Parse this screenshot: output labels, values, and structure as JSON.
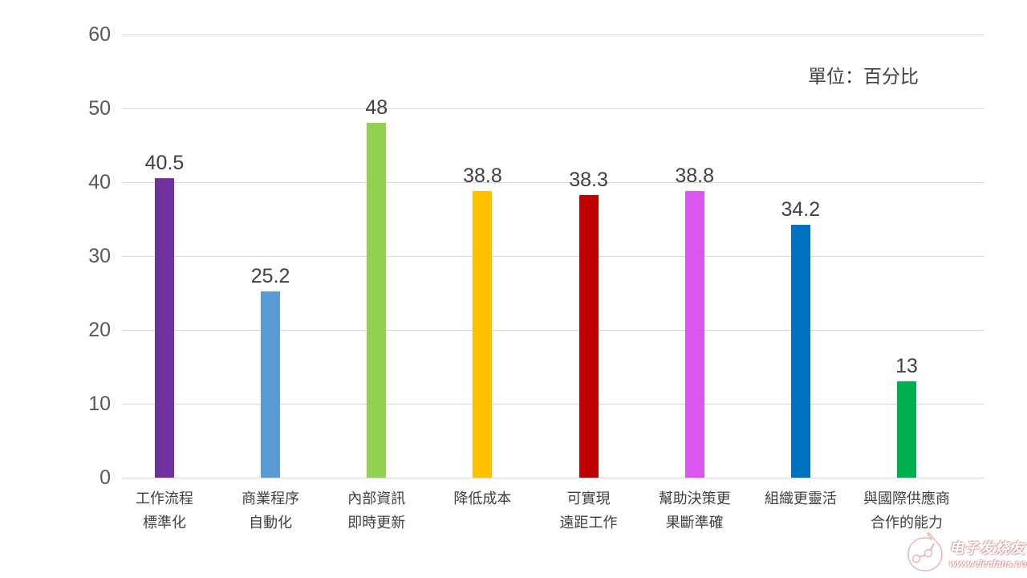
{
  "chart_data": {
    "type": "bar",
    "title": "",
    "unit_label": "單位：百分比",
    "xlabel": "",
    "ylabel": "",
    "ylim": [
      0,
      60
    ],
    "y_ticks": [
      0,
      10,
      20,
      30,
      40,
      50,
      60
    ],
    "grid": true,
    "legend_position": "none",
    "categories": [
      "工作流程標準化",
      "商業程序自動化",
      "內部資訊即時更新",
      "降低成本",
      "可實現遠距工作",
      "幫助決策更果斷準確",
      "組織更靈活",
      "與國際供應商合作的能力"
    ],
    "category_lines": [
      [
        "工作流程",
        "標準化"
      ],
      [
        "商業程序",
        "自動化"
      ],
      [
        "內部資訊",
        "即時更新"
      ],
      [
        "降低成本"
      ],
      [
        "可實現",
        "遠距工作"
      ],
      [
        "幫助決策更",
        "果斷準確"
      ],
      [
        "組織更靈活"
      ],
      [
        "與國際供應商",
        "合作的能力"
      ]
    ],
    "values": [
      40.5,
      25.2,
      48,
      38.8,
      38.3,
      38.8,
      34.2,
      13
    ],
    "data_labels": [
      "40.5",
      "25.2",
      "48",
      "38.8",
      "38.3",
      "38.8",
      "34.2",
      "13"
    ],
    "bar_colors": [
      "#7030A0",
      "#5B9BD5",
      "#92D050",
      "#FFC000",
      "#C00000",
      "#D957EE",
      "#0070C0",
      "#00B050"
    ],
    "gridline_color": "#D9D9D9",
    "tick_label_color": "#595959",
    "data_label_color": "#404040"
  },
  "watermark": {
    "brand": "电子发烧友",
    "site": "www.elecfans.com"
  }
}
